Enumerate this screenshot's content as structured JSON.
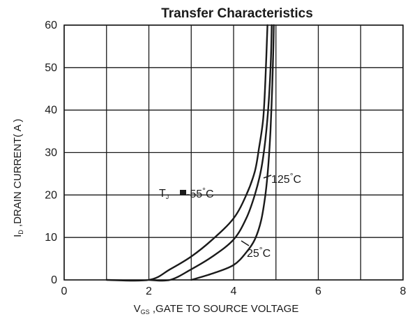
{
  "chart_data": {
    "type": "line",
    "title": "Transfer Characteristics",
    "xlabel": {
      "main": "V",
      "sub": "GS",
      "rest": " ,GATE TO SOURCE VOLTAGE"
    },
    "ylabel": {
      "main": "I",
      "sub": "D",
      "rest": " ,DRAIN CURRENT( A )"
    },
    "xlim": [
      0,
      8
    ],
    "ylim": [
      0,
      60
    ],
    "xticks": [
      "0",
      "2",
      "4",
      "6",
      "8"
    ],
    "yticks": [
      "0",
      "10",
      "20",
      "30",
      "40",
      "50",
      "60"
    ],
    "grid": true,
    "series": [
      {
        "name": "-55°C",
        "points": [
          [
            1.0,
            0
          ],
          [
            2.0,
            0
          ],
          [
            2.5,
            2.5
          ],
          [
            3.0,
            5.5
          ],
          [
            3.5,
            9.5
          ],
          [
            4.0,
            14.5
          ],
          [
            4.3,
            20
          ],
          [
            4.5,
            25.5
          ],
          [
            4.6,
            31
          ],
          [
            4.7,
            38
          ],
          [
            4.75,
            47
          ],
          [
            4.8,
            60
          ]
        ]
      },
      {
        "name": "125°C",
        "points": [
          [
            2.0,
            0
          ],
          [
            2.5,
            0
          ],
          [
            3.0,
            2.5
          ],
          [
            3.5,
            5.5
          ],
          [
            4.0,
            9.5
          ],
          [
            4.3,
            14.5
          ],
          [
            4.5,
            20
          ],
          [
            4.65,
            26
          ],
          [
            4.75,
            33
          ],
          [
            4.83,
            42
          ],
          [
            4.88,
            52
          ],
          [
            4.9,
            60
          ]
        ]
      },
      {
        "name": "25°C",
        "points": [
          [
            3.0,
            0
          ],
          [
            3.5,
            1.5
          ],
          [
            4.0,
            3.5
          ],
          [
            4.3,
            6.5
          ],
          [
            4.5,
            9.5
          ],
          [
            4.65,
            14
          ],
          [
            4.75,
            20
          ],
          [
            4.82,
            27
          ],
          [
            4.87,
            35
          ],
          [
            4.91,
            45
          ],
          [
            4.94,
            55
          ],
          [
            4.95,
            60
          ]
        ]
      }
    ],
    "annotations": {
      "tj_label": {
        "main": "T",
        "sub": "J",
        "value": "-55",
        "deg": "°",
        "unit": "C"
      },
      "label_125": {
        "value": "125",
        "deg": "°",
        "unit": "C"
      },
      "label_25": {
        "value": "25",
        "deg": "°",
        "unit": "C"
      }
    },
    "colors": {
      "line": "#1a1a1a",
      "grid": "#1a1a1a",
      "background": "#ffffff"
    }
  }
}
